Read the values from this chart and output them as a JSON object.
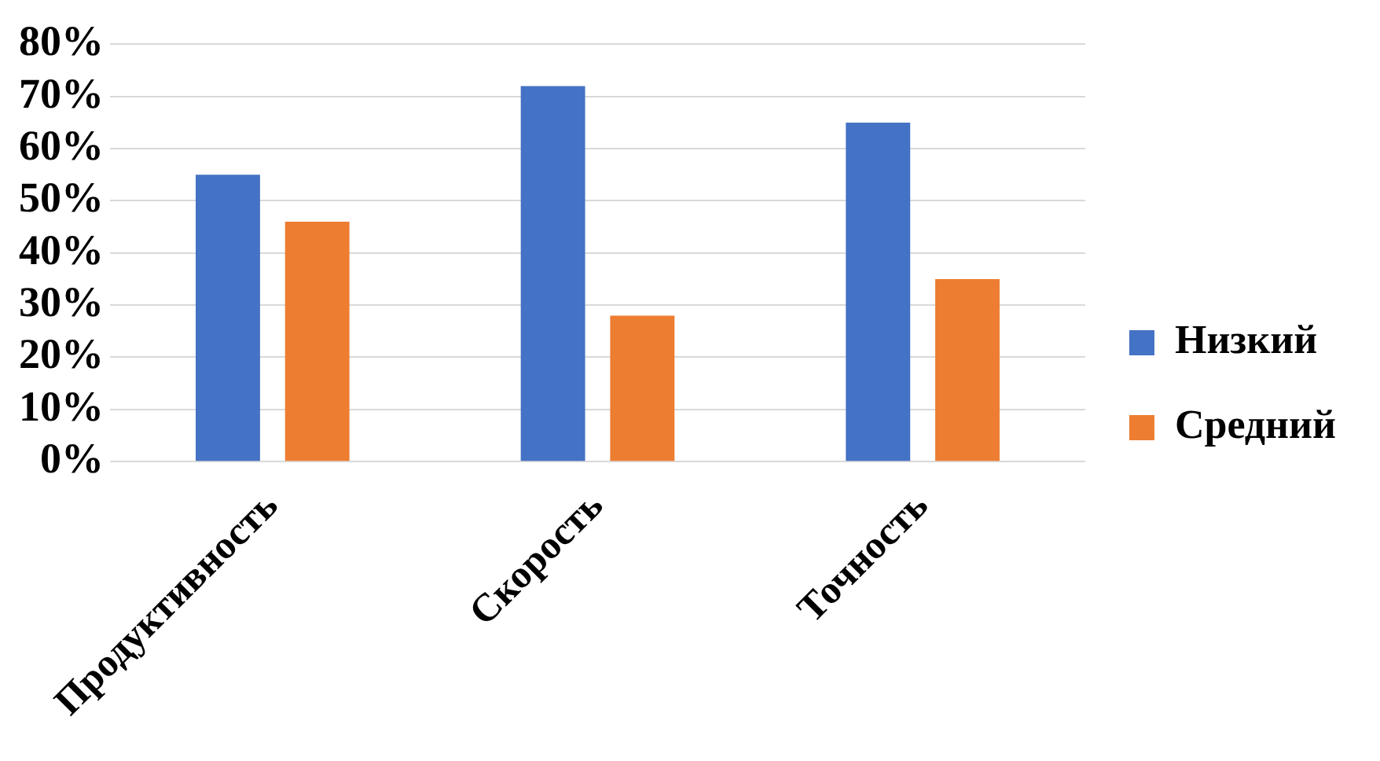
{
  "chart_data": {
    "type": "bar",
    "categories": [
      "Продуктивность",
      "Скорость",
      "Точность"
    ],
    "series": [
      {
        "name": "Низкий",
        "color": "#4472c4",
        "values": [
          55,
          72,
          65
        ]
      },
      {
        "name": "Средний",
        "color": "#ed7d31",
        "values": [
          46,
          28,
          35
        ]
      }
    ],
    "ylim": [
      0,
      80
    ],
    "yticks": [
      {
        "value": 0,
        "label": "0%"
      },
      {
        "value": 10,
        "label": "10%"
      },
      {
        "value": 20,
        "label": "20%"
      },
      {
        "value": 30,
        "label": "30%"
      },
      {
        "value": 40,
        "label": "40%"
      },
      {
        "value": 50,
        "label": "50%"
      },
      {
        "value": 60,
        "label": "60%"
      },
      {
        "value": 70,
        "label": "70%"
      },
      {
        "value": 80,
        "label": "80%"
      }
    ],
    "grid": "y",
    "legend": "right"
  }
}
